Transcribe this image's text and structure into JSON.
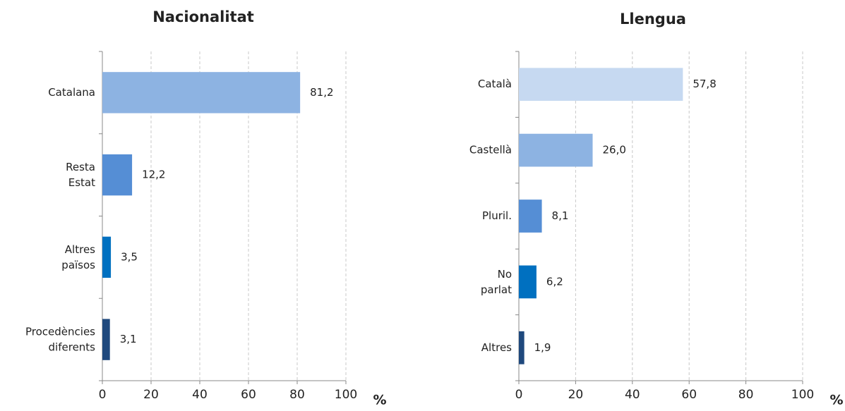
{
  "chart_data": [
    {
      "type": "bar",
      "orientation": "horizontal",
      "title": "Nacionalitat",
      "categories": [
        "Catalana",
        "Resta Estat",
        "Altres països",
        "Procedències diferents"
      ],
      "values": [
        81.2,
        12.2,
        3.5,
        3.1
      ],
      "value_labels": [
        "81,2",
        "12,2",
        "3,5",
        "3,1"
      ],
      "colors": [
        "#8db3e2",
        "#558ed5",
        "#0070c0",
        "#1f497d"
      ],
      "xlim": [
        0,
        100
      ],
      "xticks": [
        0,
        20,
        40,
        60,
        80,
        100
      ],
      "x_label": "%",
      "grid": true
    },
    {
      "type": "bar",
      "orientation": "horizontal",
      "title": "Llengua",
      "categories": [
        "Català",
        "Castellà",
        "Pluril.",
        "No parlat",
        "Altres"
      ],
      "values": [
        57.8,
        26.0,
        8.1,
        6.2,
        1.9
      ],
      "value_labels": [
        "57,8",
        "26,0",
        "8,1",
        "6,2",
        "1,9"
      ],
      "colors": [
        "#c6d9f1",
        "#8db3e2",
        "#558ed5",
        "#0070c0",
        "#1f497d"
      ],
      "xlim": [
        0,
        100
      ],
      "xticks": [
        0,
        20,
        40,
        60,
        80,
        100
      ],
      "x_label": "%",
      "grid": true
    }
  ]
}
